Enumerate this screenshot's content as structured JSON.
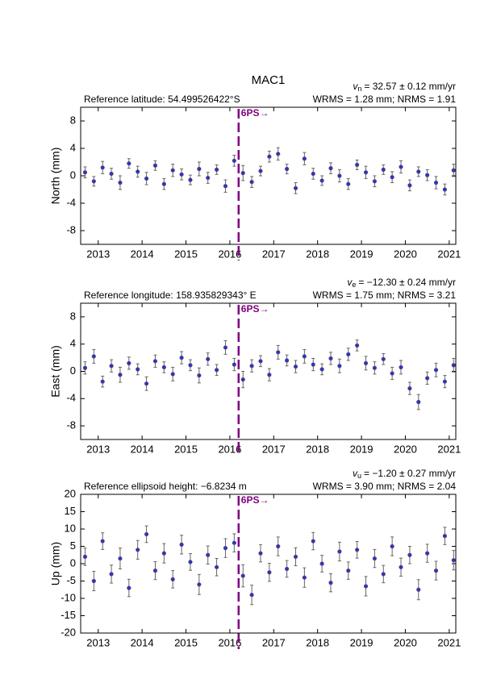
{
  "chart_data": [
    {
      "type": "scatter",
      "title": "MAC1",
      "reference": "Reference latitude: 54.499526422°S",
      "velocity": {
        "symbol": "v",
        "subscript": "n",
        "text": "= 32.57 ± 0.12 mm/yr"
      },
      "stats": "WRMS = 1.28 mm; NRMS = 1.91",
      "y_label": "North (mm)",
      "event": {
        "label": "6PS→",
        "x": 2016.2,
        "color": "#800080"
      },
      "xlim": [
        2012.6,
        2021.15
      ],
      "xticks": [
        2013,
        2014,
        2015,
        2016,
        2017,
        2018,
        2019,
        2020,
        2021
      ],
      "ylim": [
        -10,
        10
      ],
      "yticks": [
        8,
        4,
        0,
        -4,
        -8
      ],
      "x": [
        2012.7,
        2012.9,
        2013.1,
        2013.3,
        2013.5,
        2013.7,
        2013.9,
        2014.1,
        2014.3,
        2014.5,
        2014.7,
        2014.9,
        2015.1,
        2015.3,
        2015.5,
        2015.7,
        2015.9,
        2016.1,
        2016.3,
        2016.5,
        2016.7,
        2016.9,
        2017.1,
        2017.3,
        2017.5,
        2017.7,
        2017.9,
        2018.1,
        2018.3,
        2018.5,
        2018.7,
        2018.9,
        2019.1,
        2019.3,
        2019.5,
        2019.7,
        2019.9,
        2020.1,
        2020.3,
        2020.5,
        2020.7,
        2020.9,
        2021.1
      ],
      "series": [
        {
          "color": "#3030d0",
          "error_color": "#666666",
          "values": [
            0.5,
            -0.8,
            1.2,
            0.3,
            -1.0,
            1.8,
            0.6,
            -0.4,
            1.5,
            -1.2,
            0.8,
            0.2,
            -0.6,
            1.0,
            -0.3,
            0.9,
            -1.5,
            2.2,
            0.4,
            -0.9,
            0.7,
            2.8,
            3.2,
            1.0,
            -1.8,
            2.5,
            0.3,
            -0.7,
            1.1,
            0.0,
            -1.2,
            1.6,
            0.5,
            -0.8,
            0.9,
            -0.2,
            1.3,
            -1.4,
            0.6,
            0.1,
            -1.0,
            -2.0,
            0.8
          ],
          "errors": [
            0.8,
            0.7,
            0.9,
            0.8,
            1.0,
            0.7,
            0.8,
            0.9,
            0.7,
            0.8,
            0.9,
            0.8,
            0.7,
            1.0,
            0.8,
            0.7,
            0.9,
            0.8,
            1.1,
            0.8,
            0.7,
            0.8,
            0.9,
            0.7,
            0.8,
            0.9,
            0.8,
            0.7,
            0.8,
            0.9,
            0.8,
            0.7,
            0.9,
            0.8,
            0.7,
            0.8,
            0.9,
            0.8,
            0.7,
            0.8,
            0.9,
            0.8,
            0.9
          ]
        }
      ]
    },
    {
      "type": "scatter",
      "reference": "Reference longitude: 158.935829343° E",
      "velocity": {
        "symbol": "v",
        "subscript": "e",
        "text": "= −12.30 ± 0.24 mm/yr"
      },
      "stats": "WRMS = 1.75 mm; NRMS = 3.21",
      "y_label": "East (mm)",
      "event": {
        "label": "6PS→",
        "x": 2016.2,
        "color": "#800080"
      },
      "xlim": [
        2012.6,
        2021.15
      ],
      "xticks": [
        2013,
        2014,
        2015,
        2016,
        2017,
        2018,
        2019,
        2020,
        2021
      ],
      "ylim": [
        -10,
        10
      ],
      "yticks": [
        8,
        4,
        0,
        -4,
        -8
      ],
      "x": [
        2012.7,
        2012.9,
        2013.1,
        2013.3,
        2013.5,
        2013.7,
        2013.9,
        2014.1,
        2014.3,
        2014.5,
        2014.7,
        2014.9,
        2015.1,
        2015.3,
        2015.5,
        2015.7,
        2015.9,
        2016.1,
        2016.3,
        2016.5,
        2016.7,
        2016.9,
        2017.1,
        2017.3,
        2017.5,
        2017.7,
        2017.9,
        2018.1,
        2018.3,
        2018.5,
        2018.7,
        2018.9,
        2019.1,
        2019.3,
        2019.5,
        2019.7,
        2019.9,
        2020.1,
        2020.3,
        2020.5,
        2020.7,
        2020.9,
        2021.1
      ],
      "series": [
        {
          "color": "#3030d0",
          "error_color": "#666666",
          "values": [
            0.5,
            2.2,
            -1.5,
            0.8,
            -0.5,
            1.2,
            0.3,
            -1.8,
            1.5,
            0.6,
            -0.4,
            2.0,
            0.9,
            -0.6,
            1.8,
            0.2,
            3.5,
            1.0,
            -1.2,
            0.8,
            1.5,
            -0.5,
            2.8,
            1.6,
            0.7,
            2.2,
            1.0,
            0.3,
            1.9,
            0.8,
            2.5,
            3.8,
            1.2,
            0.5,
            1.8,
            -0.3,
            0.6,
            -2.5,
            -4.5,
            -1.0,
            0.2,
            -1.5,
            0.9
          ],
          "errors": [
            0.9,
            1.0,
            0.8,
            0.9,
            1.1,
            0.9,
            0.8,
            1.0,
            0.9,
            0.8,
            1.0,
            0.9,
            0.8,
            1.1,
            0.9,
            0.8,
            1.0,
            0.9,
            1.2,
            0.9,
            0.8,
            0.9,
            1.0,
            0.8,
            0.9,
            1.0,
            0.9,
            0.8,
            0.9,
            1.0,
            0.9,
            0.8,
            1.0,
            0.9,
            0.8,
            0.9,
            1.0,
            0.9,
            1.1,
            0.9,
            1.0,
            0.9,
            1.0
          ]
        }
      ]
    },
    {
      "type": "scatter",
      "reference": "Reference ellipsoid height: −6.8234 m",
      "velocity": {
        "symbol": "v",
        "subscript": "u",
        "text": "= −1.20 ± 0.27 mm/yr"
      },
      "stats": "WRMS = 3.90 mm; NRMS = 2.04",
      "y_label": "Up (mm)",
      "event": {
        "label": "6PS→",
        "x": 2016.2,
        "color": "#800080"
      },
      "xlim": [
        2012.6,
        2021.15
      ],
      "xticks": [
        2013,
        2014,
        2015,
        2016,
        2017,
        2018,
        2019,
        2020,
        2021
      ],
      "ylim": [
        -20,
        20
      ],
      "yticks": [
        20,
        15,
        10,
        5,
        0,
        -5,
        -10,
        -15,
        -20
      ],
      "x": [
        2012.7,
        2012.9,
        2013.1,
        2013.3,
        2013.5,
        2013.7,
        2013.9,
        2014.1,
        2014.3,
        2014.5,
        2014.7,
        2014.9,
        2015.1,
        2015.3,
        2015.5,
        2015.7,
        2015.9,
        2016.1,
        2016.3,
        2016.5,
        2016.7,
        2016.9,
        2017.1,
        2017.3,
        2017.5,
        2017.7,
        2017.9,
        2018.1,
        2018.3,
        2018.5,
        2018.7,
        2018.9,
        2019.1,
        2019.3,
        2019.5,
        2019.7,
        2019.9,
        2020.1,
        2020.3,
        2020.5,
        2020.7,
        2020.9,
        2021.1
      ],
      "series": [
        {
          "color": "#3030d0",
          "error_color": "#666666",
          "values": [
            2.0,
            -5.0,
            6.5,
            -3.0,
            1.5,
            -7.0,
            4.0,
            8.5,
            -2.0,
            3.0,
            -4.5,
            5.5,
            0.5,
            -6.0,
            2.5,
            -1.0,
            4.5,
            6.0,
            -3.5,
            -9.0,
            3.0,
            -2.5,
            5.0,
            -1.5,
            2.0,
            -4.0,
            6.5,
            0.0,
            -5.5,
            3.5,
            -2.0,
            4.0,
            -6.5,
            1.5,
            -3.0,
            5.0,
            -1.0,
            2.5,
            -7.5,
            3.0,
            -2.0,
            8.0,
            1.0
          ],
          "errors": [
            2.5,
            2.8,
            2.4,
            2.6,
            3.0,
            2.5,
            2.7,
            2.4,
            2.6,
            2.8,
            2.5,
            2.7,
            2.4,
            2.9,
            2.6,
            2.5,
            2.7,
            2.6,
            3.2,
            2.8,
            2.5,
            2.6,
            2.7,
            2.4,
            2.6,
            2.8,
            2.5,
            2.4,
            2.6,
            2.7,
            2.5,
            2.4,
            2.8,
            2.6,
            2.5,
            2.7,
            2.6,
            2.5,
            2.9,
            2.6,
            2.7,
            2.5,
            2.8
          ]
        }
      ]
    }
  ]
}
